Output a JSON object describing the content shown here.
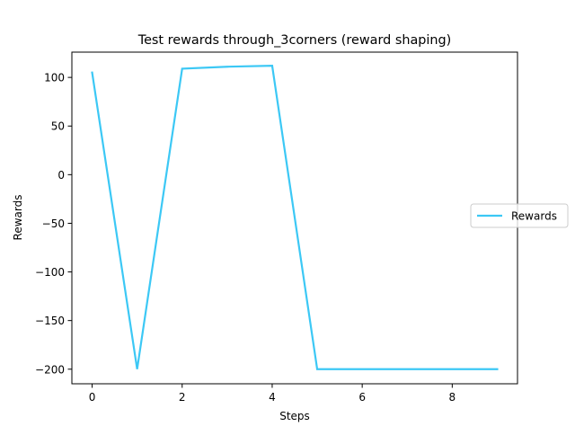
{
  "chart_data": {
    "type": "line",
    "title": "Test rewards through_3corners (reward shaping)",
    "xlabel": "Steps",
    "ylabel": "Rewards",
    "xlim": [
      -0.45,
      9.45
    ],
    "ylim": [
      -215,
      126
    ],
    "x_ticks": [
      0,
      2,
      4,
      6,
      8
    ],
    "y_ticks": [
      -200,
      -150,
      -100,
      -50,
      0,
      50,
      100
    ],
    "x_tick_labels": [
      "0",
      "2",
      "4",
      "6",
      "8"
    ],
    "y_tick_labels": [
      "−200",
      "−150",
      "−100",
      "−50",
      "0",
      "50",
      "100"
    ],
    "grid": false,
    "legend_position": "right",
    "series": [
      {
        "name": "Rewards",
        "color": "#3cc8f5",
        "x": [
          0,
          1,
          2,
          3,
          4,
          5,
          6,
          7,
          8,
          9
        ],
        "y": [
          105,
          -200,
          109,
          111,
          112,
          -200,
          -200,
          -200,
          -200,
          -200
        ]
      }
    ]
  }
}
